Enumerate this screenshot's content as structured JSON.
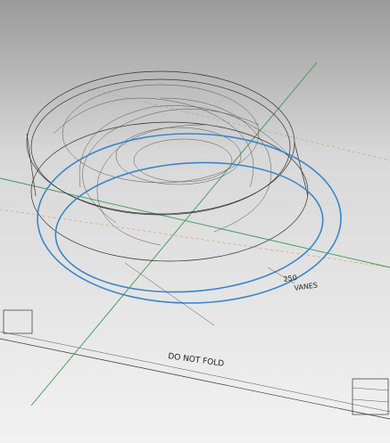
{
  "viewport": {
    "annotations": {
      "fold_note": "DO NOT FOLD",
      "dimension": "250",
      "vanes_note": "VANES"
    }
  }
}
